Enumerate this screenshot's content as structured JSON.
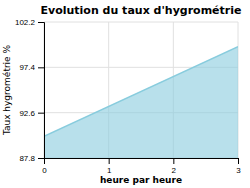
{
  "chart_data": {
    "type": "area",
    "title": "Evolution du taux d'hygrométrie",
    "xlabel": "heure par heure",
    "ylabel": "Taux hygrométrie %",
    "x": [
      0,
      3
    ],
    "values": [
      90.1,
      99.6
    ],
    "color": "#88ccdd",
    "xlim": [
      0,
      3
    ],
    "ylim": [
      87.8,
      102.2
    ],
    "xticks": [
      0,
      1,
      2,
      3
    ],
    "yticks": [
      87.8,
      92.6,
      97.4,
      102.2
    ],
    "grid": true
  }
}
